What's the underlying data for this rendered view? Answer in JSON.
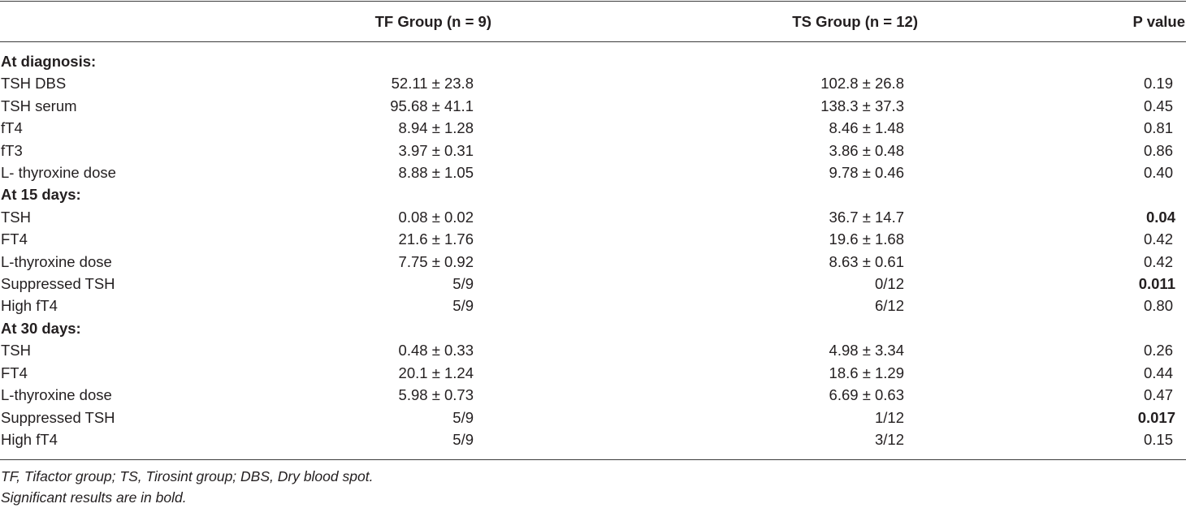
{
  "header": {
    "col1": "TF Group (n = 9)",
    "col2": "TS Group (n = 12)",
    "col3": "P value"
  },
  "rows": [
    {
      "label": "At diagnosis:",
      "section": true
    },
    {
      "label": "TSH DBS",
      "tf": "52.11 ± 23.8",
      "ts": "102.8 ± 26.8",
      "p": "0.19"
    },
    {
      "label": "TSH serum",
      "tf": "95.68 ± 41.1",
      "ts": "138.3 ± 37.3",
      "p": "0.45"
    },
    {
      "label": "fT4",
      "tf": "8.94 ± 1.28",
      "ts": "8.46 ± 1.48",
      "p": "0.81"
    },
    {
      "label": "fT3",
      "tf": "3.97 ± 0.31",
      "ts": "3.86 ± 0.48",
      "p": "0.86"
    },
    {
      "label": "L- thyroxine dose",
      "tf": "8.88 ± 1.05",
      "ts": "9.78 ± 0.46",
      "p": "0.40"
    },
    {
      "label": "At 15 days:",
      "section": true
    },
    {
      "label": "TSH",
      "tf": "0.08 ± 0.02",
      "ts": "36.7 ± 14.7",
      "p": "0.04",
      "significant": true
    },
    {
      "label": "FT4",
      "tf": "21.6 ± 1.76",
      "ts": "19.6 ± 1.68",
      "p": "0.42"
    },
    {
      "label": "L-thyroxine dose",
      "tf": "7.75 ± 0.92",
      "ts": "8.63 ± 0.61",
      "p": "0.42"
    },
    {
      "label": "Suppressed TSH",
      "tf": "5/9",
      "ts": "0/12",
      "p": "0.011",
      "significant": true
    },
    {
      "label": "High fT4",
      "tf": "5/9",
      "ts": "6/12",
      "p": "0.80"
    },
    {
      "label": "At 30 days:",
      "section": true
    },
    {
      "label": "TSH",
      "tf": "0.48 ± 0.33",
      "ts": "4.98 ± 3.34",
      "p": "0.26"
    },
    {
      "label": "FT4",
      "tf": "20.1 ± 1.24",
      "ts": "18.6 ± 1.29",
      "p": "0.44"
    },
    {
      "label": "L-thyroxine dose",
      "tf": "5.98 ± 0.73",
      "ts": "6.69 ± 0.63",
      "p": "0.47"
    },
    {
      "label": "Suppressed TSH",
      "tf": "5/9",
      "ts": "1/12",
      "p": "0.017",
      "significant": true
    },
    {
      "label": "High fT4",
      "tf": "5/9",
      "ts": "3/12",
      "p": "0.15"
    }
  ],
  "footnotes": {
    "abbreviations": "TF, Tifactor group; TS, Tirosint group; DBS, Dry blood spot.",
    "bold_note": "Significant results are in bold."
  }
}
